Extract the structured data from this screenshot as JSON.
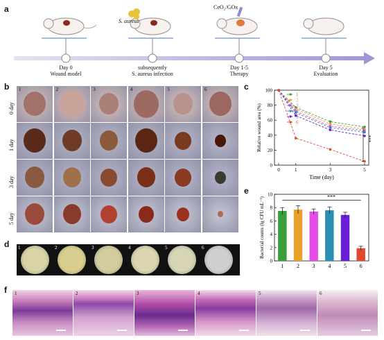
{
  "panel_letters": {
    "a": "a",
    "b": "b",
    "c": "c",
    "d": "d",
    "e": "e",
    "f": "f"
  },
  "timeline": {
    "steps": [
      {
        "title": "Day 0",
        "subtitle": "Wound model"
      },
      {
        "title": "",
        "subtitle": "subsequently"
      },
      {
        "title": "Day 1-5",
        "subtitle": "Therapy"
      },
      {
        "title": "Day 5",
        "subtitle": "Evaluation"
      }
    ],
    "infection_label_1": "S. aureus infection",
    "inject_label_1": "S. aureus",
    "inject_label_2": "CeO₂/GOx",
    "colors": {
      "arrow_start": "#dfe0f0",
      "arrow_end": "#9b95d6"
    }
  },
  "photo_grid": {
    "columns": [
      "1",
      "2",
      "3",
      "4",
      "5",
      "6"
    ],
    "rows": [
      "0 day",
      "1 day",
      "3 day",
      "5 day"
    ]
  },
  "dishes": [
    "1",
    "2",
    "3",
    "4",
    "5",
    "6"
  ],
  "he_panels": [
    "1",
    "2",
    "3",
    "4",
    "5",
    "6"
  ],
  "chart_data": [
    {
      "type": "line",
      "panel": "c",
      "x": [
        0,
        1,
        3,
        5
      ],
      "xticks": [
        "0",
        "1",
        "3",
        "5"
      ],
      "xlabel": "Time (day)",
      "ylabel": "Relative wound area (%)",
      "ylim": [
        0,
        100
      ],
      "yticks": [
        "0",
        "20",
        "40",
        "60",
        "80",
        "100"
      ],
      "legend_position": "top-right",
      "significance": "***",
      "series": [
        {
          "name": "1",
          "color": "#3a9e3a",
          "values": [
            100,
            77,
            58,
            51
          ]
        },
        {
          "name": "2",
          "color": "#e8a02a",
          "values": [
            100,
            75,
            55,
            48
          ]
        },
        {
          "name": "3",
          "color": "#e64ce6",
          "values": [
            100,
            72,
            52,
            46
          ]
        },
        {
          "name": "4",
          "color": "#2a8fb0",
          "values": [
            100,
            70,
            50,
            44
          ]
        },
        {
          "name": "5",
          "color": "#6a1fd6",
          "values": [
            100,
            66,
            47,
            39
          ]
        },
        {
          "name": "6",
          "color": "#e2492e",
          "values": [
            100,
            36,
            21,
            5
          ]
        }
      ]
    },
    {
      "type": "bar",
      "panel": "e",
      "categories": [
        "1",
        "2",
        "3",
        "4",
        "5",
        "6"
      ],
      "values": [
        7.5,
        7.7,
        7.4,
        7.6,
        6.9,
        1.9
      ],
      "errors": [
        0.5,
        0.6,
        0.4,
        0.5,
        0.4,
        0.3
      ],
      "colors": [
        "#3a9e3a",
        "#e8a02a",
        "#e64ce6",
        "#2a8fb0",
        "#6a1fd6",
        "#e2492e"
      ],
      "ylabel": "Bacterial counts (lg CFU mL⁻¹)",
      "ylim": [
        0,
        10
      ],
      "yticks": [
        "0",
        "2",
        "4",
        "6",
        "8",
        "10"
      ],
      "significance": "***"
    }
  ]
}
